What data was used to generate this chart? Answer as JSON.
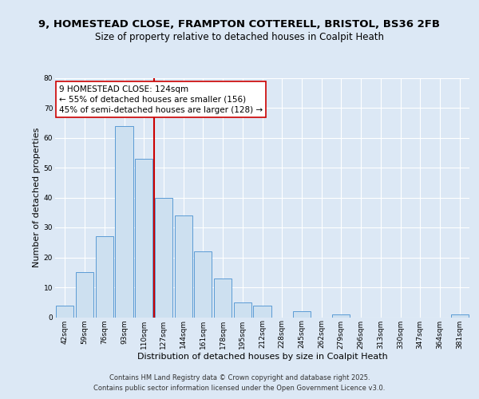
{
  "title1": "9, HOMESTEAD CLOSE, FRAMPTON COTTERELL, BRISTOL, BS36 2FB",
  "title2": "Size of property relative to detached houses in Coalpit Heath",
  "xlabel": "Distribution of detached houses by size in Coalpit Heath",
  "ylabel": "Number of detached properties",
  "bar_labels": [
    "42sqm",
    "59sqm",
    "76sqm",
    "93sqm",
    "110sqm",
    "127sqm",
    "144sqm",
    "161sqm",
    "178sqm",
    "195sqm",
    "212sqm",
    "228sqm",
    "245sqm",
    "262sqm",
    "279sqm",
    "296sqm",
    "313sqm",
    "330sqm",
    "347sqm",
    "364sqm",
    "381sqm"
  ],
  "bar_values": [
    4,
    15,
    27,
    64,
    53,
    40,
    34,
    22,
    13,
    5,
    4,
    0,
    2,
    0,
    1,
    0,
    0,
    0,
    0,
    0,
    1
  ],
  "bar_color": "#cde0f0",
  "bar_edge_color": "#5b9bd5",
  "vline_color": "#cc0000",
  "annotation_text": "9 HOMESTEAD CLOSE: 124sqm\n← 55% of detached houses are smaller (156)\n45% of semi-detached houses are larger (128) →",
  "annotation_box_color": "white",
  "annotation_box_edge_color": "#cc0000",
  "ylim": [
    0,
    80
  ],
  "yticks": [
    0,
    10,
    20,
    30,
    40,
    50,
    60,
    70,
    80
  ],
  "background_color": "#dce8f5",
  "grid_color": "#ffffff",
  "footer1": "Contains HM Land Registry data © Crown copyright and database right 2025.",
  "footer2": "Contains public sector information licensed under the Open Government Licence v3.0.",
  "title_fontsize": 9.5,
  "subtitle_fontsize": 8.5,
  "axis_label_fontsize": 8,
  "tick_fontsize": 6.5,
  "annotation_fontsize": 7.5,
  "footer_fontsize": 6,
  "vline_x": 4.5
}
